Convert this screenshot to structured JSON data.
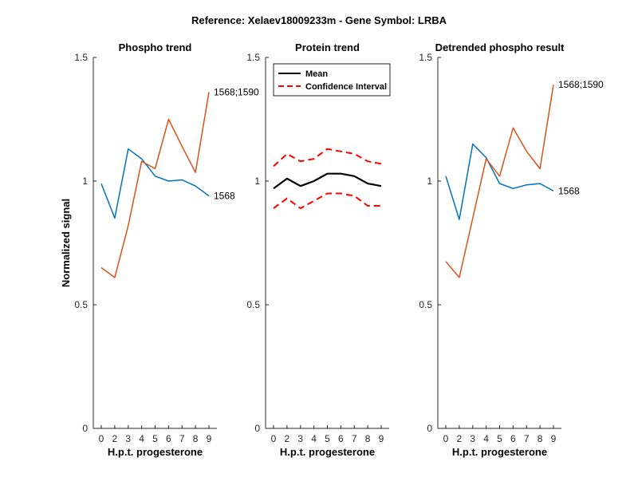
{
  "figure": {
    "title": "Reference:  Xelaev18009233m - Gene Symbol:  LRBA"
  },
  "chart_data": [
    {
      "type": "line",
      "title": "Phospho trend",
      "xlabel": "H.p.t. progesterone",
      "ylabel": "Normalized signal",
      "ylim": [
        0,
        1.5
      ],
      "yticks": [
        "0",
        "0.5",
        "1",
        "1.5"
      ],
      "categories": [
        "0",
        "2",
        "3",
        "4",
        "5",
        "6",
        "7",
        "8",
        "9"
      ],
      "series": [
        {
          "name": "1568",
          "color": "#0072BD",
          "style": "solid",
          "values": [
            0.99,
            0.85,
            1.13,
            1.09,
            1.02,
            1.0,
            1.005,
            0.98,
            0.94
          ]
        },
        {
          "name": "1568;1590",
          "color": "#D95319",
          "style": "solid",
          "values": [
            0.65,
            0.61,
            0.82,
            1.08,
            1.05,
            1.25,
            1.14,
            1.035,
            1.36
          ]
        }
      ]
    },
    {
      "type": "line",
      "title": "Protein trend",
      "xlabel": "H.p.t. progesterone",
      "ylabel": "",
      "ylim": [
        0,
        1.5
      ],
      "yticks": [
        "0",
        "0.5",
        "1",
        "1.5"
      ],
      "categories": [
        "0",
        "2",
        "3",
        "4",
        "5",
        "6",
        "7",
        "8",
        "9"
      ],
      "legend": {
        "position": "top-left",
        "entries": [
          "Mean",
          "Confidence Interval"
        ]
      },
      "series": [
        {
          "name": "Mean",
          "color": "#000000",
          "style": "solid",
          "values": [
            0.97,
            1.01,
            0.98,
            1.0,
            1.03,
            1.03,
            1.02,
            0.99,
            0.98
          ]
        },
        {
          "name": "Confidence Interval",
          "color": "#FF0000",
          "style": "dashed",
          "values": [
            1.06,
            1.11,
            1.08,
            1.09,
            1.13,
            1.12,
            1.11,
            1.08,
            1.07
          ]
        },
        {
          "name": "",
          "color": "#FF0000",
          "style": "dashed",
          "values": [
            0.89,
            0.93,
            0.89,
            0.92,
            0.95,
            0.95,
            0.94,
            0.9,
            0.9
          ]
        }
      ]
    },
    {
      "type": "line",
      "title": "Detrended phospho result",
      "xlabel": "H.p.t. progesterone",
      "ylabel": "",
      "ylim": [
        0,
        1.5
      ],
      "yticks": [
        "0",
        "0.5",
        "1",
        "1.5"
      ],
      "categories": [
        "0",
        "2",
        "3",
        "4",
        "5",
        "6",
        "7",
        "8",
        "9"
      ],
      "series": [
        {
          "name": "1568",
          "color": "#0072BD",
          "style": "solid",
          "values": [
            1.02,
            0.845,
            1.15,
            1.095,
            0.99,
            0.97,
            0.985,
            0.99,
            0.96
          ]
        },
        {
          "name": "1568;1590",
          "color": "#D95319",
          "style": "solid",
          "values": [
            0.675,
            0.61,
            0.85,
            1.09,
            1.02,
            1.215,
            1.12,
            1.05,
            1.39
          ]
        }
      ]
    }
  ]
}
